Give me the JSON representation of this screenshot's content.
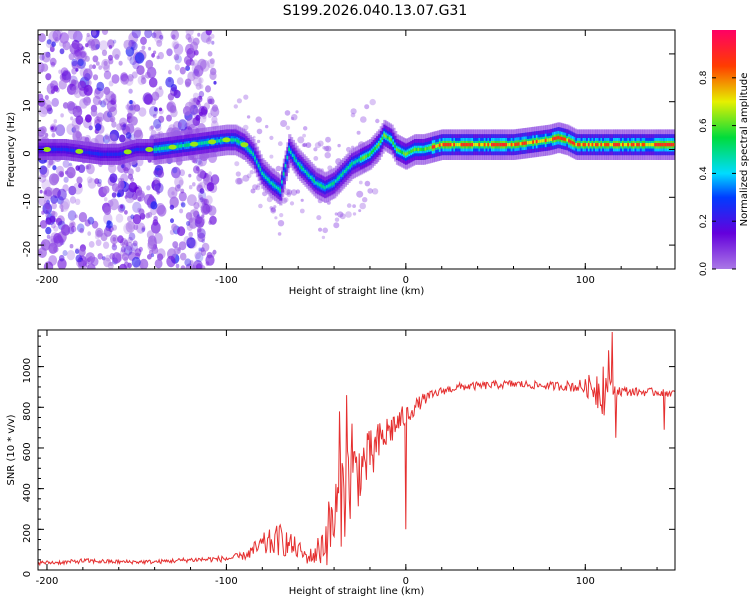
{
  "title": "S199.2026.040.13.07.G31",
  "chart_data": [
    {
      "type": "heatmap",
      "name": "spectrogram",
      "xlabel": "Height of straight line (km)",
      "ylabel": "Frequency (Hz)",
      "xlim": [
        -205,
        150
      ],
      "ylim": [
        -25,
        25
      ],
      "xticks": [
        -200,
        -100,
        0,
        100
      ],
      "xtick_labels": [
        "-200",
        "-100",
        "0",
        "100"
      ],
      "yticks": [
        -20,
        -10,
        0,
        10,
        20
      ],
      "ytick_labels": [
        "-20",
        "-10",
        "0",
        "10",
        "20"
      ],
      "colorbar": {
        "label": "Normalized spectral amplitude",
        "range": [
          0,
          1
        ],
        "ticks": [
          0,
          0.2,
          0.4,
          0.6,
          0.8
        ],
        "tick_labels": [
          "0.0",
          "0.2",
          "0.4",
          "0.6",
          "0.8"
        ]
      },
      "ridge": {
        "x": [
          -205,
          -195,
          -190,
          -180,
          -170,
          -160,
          -150,
          -140,
          -130,
          -120,
          -110,
          -100,
          -95,
          -90,
          -85,
          -80,
          -75,
          -70,
          -65,
          -60,
          -55,
          -50,
          -45,
          -40,
          -35,
          -30,
          -25,
          -20,
          -15,
          -12,
          -8,
          -5,
          0,
          5,
          10,
          20,
          30,
          40,
          50,
          60,
          70,
          80,
          85,
          90,
          95,
          100,
          110,
          120,
          130,
          140,
          150
        ],
        "y": [
          0,
          0,
          0,
          -0.5,
          -1,
          -1,
          0,
          0,
          0.5,
          1,
          1.5,
          2,
          2,
          1,
          -1,
          -5,
          -7,
          -8.5,
          0,
          -3,
          -5,
          -7,
          -8,
          -7,
          -5,
          -3,
          -2,
          -1,
          1,
          3,
          2,
          0,
          -1,
          0,
          0,
          1,
          1,
          1,
          1,
          1,
          1.5,
          2,
          2.5,
          2,
          1,
          1,
          1,
          1,
          1,
          1,
          1
        ]
      }
    },
    {
      "type": "line",
      "name": "snr",
      "xlabel": "Height of straight line (km)",
      "ylabel": "SNR (10 * v/v)",
      "xlim": [
        -205,
        150
      ],
      "ylim": [
        0,
        1180
      ],
      "xticks": [
        -200,
        -100,
        0,
        100
      ],
      "xtick_labels": [
        "-200",
        "-100",
        "0",
        "100"
      ],
      "yticks": [
        0,
        200,
        400,
        600,
        800,
        1000
      ],
      "ytick_labels": [
        "0",
        "200",
        "400",
        "600",
        "800",
        "1000"
      ],
      "color": "#e53030",
      "envelope": {
        "x": [
          -205,
          -190,
          -180,
          -160,
          -140,
          -120,
          -100,
          -90,
          -80,
          -70,
          -60,
          -55,
          -50,
          -45,
          -40,
          -35,
          -30,
          -25,
          -20,
          -15,
          -10,
          -5,
          0,
          5,
          10,
          20,
          30,
          40,
          50,
          60,
          70,
          80,
          90,
          100,
          105,
          110,
          115,
          120,
          130,
          140,
          150
        ],
        "y": [
          35,
          38,
          45,
          40,
          40,
          50,
          55,
          70,
          120,
          150,
          100,
          60,
          80,
          150,
          250,
          380,
          450,
          500,
          560,
          620,
          680,
          720,
          760,
          800,
          840,
          880,
          900,
          905,
          910,
          915,
          910,
          905,
          905,
          900,
          900,
          890,
          880,
          880,
          875,
          875,
          870
        ],
        "noise": [
          10,
          10,
          12,
          10,
          10,
          12,
          15,
          20,
          60,
          80,
          50,
          30,
          60,
          140,
          200,
          250,
          220,
          160,
          130,
          110,
          90,
          70,
          55,
          40,
          30,
          20,
          20,
          20,
          20,
          20,
          20,
          20,
          25,
          40,
          90,
          140,
          40,
          25,
          20,
          20,
          20
        ]
      },
      "spikes": [
        {
          "x": -33,
          "y": 860
        },
        {
          "x": -37,
          "y": 780
        },
        {
          "x": -30,
          "y": 720
        },
        {
          "x": -18,
          "y": 480
        },
        {
          "x": 0,
          "y": 200
        },
        {
          "x": 115,
          "y": 1170
        },
        {
          "x": 113,
          "y": 1080
        },
        {
          "x": 110,
          "y": 1000
        },
        {
          "x": 117,
          "y": 650
        },
        {
          "x": 144,
          "y": 690
        }
      ]
    }
  ]
}
